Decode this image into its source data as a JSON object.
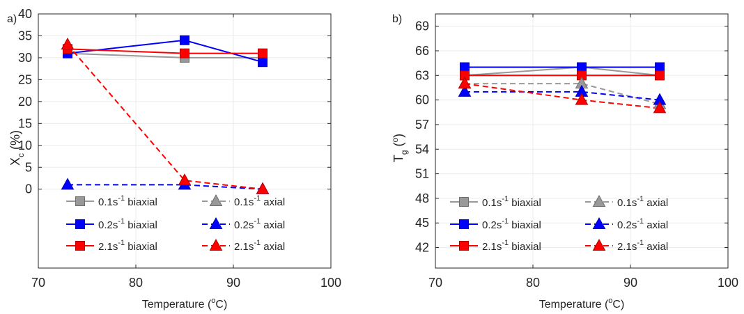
{
  "colors": {
    "gray": "#999999",
    "gray_edge": "#6e6e6e",
    "blue": "#0000ff",
    "blue_edge": "#0000b4",
    "red": "#ff0000",
    "red_edge": "#b40000",
    "grid": "#ebebeb",
    "axis": "#262626"
  },
  "chart_data": [
    {
      "type": "line",
      "panel_label": "a)",
      "title": "",
      "xlabel": "Temperature (°C)",
      "xlabel_parts": {
        "pre": "Temperature (",
        "sup": "o",
        "post": "C)"
      },
      "ylabel": "X_c (%)",
      "ylabel_parts": {
        "main": "X",
        "sub": "c",
        "post": " (%)"
      },
      "xlim": [
        70,
        100
      ],
      "xticks": [
        "70",
        "80",
        "90",
        "100"
      ],
      "ylim": [
        -18,
        40
      ],
      "yticks": [
        "0",
        "5",
        "10",
        "15",
        "20",
        "25",
        "30",
        "35",
        "40"
      ],
      "grid": true,
      "legend_position": "bottom, inside axes (two columns)",
      "series": [
        {
          "name": "0.1s⁻¹ biaxial",
          "label": {
            "rate": "0.1s",
            "exp": "-1",
            "mode": " biaxial"
          },
          "color": "gray",
          "marker": "square",
          "dash": "solid",
          "x": [
            73,
            85,
            93
          ],
          "y": [
            31,
            30,
            30
          ]
        },
        {
          "name": "0.2s⁻¹ biaxial",
          "label": {
            "rate": "0.2s",
            "exp": "-1",
            "mode": " biaxial"
          },
          "color": "blue",
          "marker": "square",
          "dash": "solid",
          "x": [
            73,
            85,
            93
          ],
          "y": [
            31,
            34,
            29
          ]
        },
        {
          "name": "2.1s⁻¹ biaxial",
          "label": {
            "rate": "2.1s",
            "exp": "-1",
            "mode": " biaxial"
          },
          "color": "red",
          "marker": "square",
          "dash": "solid",
          "x": [
            73,
            85,
            93
          ],
          "y": [
            32,
            31,
            31
          ]
        },
        {
          "name": "0.1s⁻¹ axial",
          "label": {
            "rate": "0.1s",
            "exp": "-1",
            "mode": " axial"
          },
          "color": "gray",
          "marker": "triangle",
          "dash": "dashed",
          "x": [
            73,
            85,
            93
          ],
          "y": [
            null,
            null,
            null
          ]
        },
        {
          "name": "0.2s⁻¹ axial",
          "label": {
            "rate": "0.2s",
            "exp": "-1",
            "mode": " axial"
          },
          "color": "blue",
          "marker": "triangle",
          "dash": "dashed",
          "x": [
            73,
            85,
            93
          ],
          "y": [
            1,
            1,
            0
          ]
        },
        {
          "name": "2.1s⁻¹ axial",
          "label": {
            "rate": "2.1s",
            "exp": "-1",
            "mode": " axial"
          },
          "color": "red",
          "marker": "triangle",
          "dash": "dashed",
          "x": [
            73,
            85,
            93
          ],
          "y": [
            33,
            2,
            0
          ]
        }
      ]
    },
    {
      "type": "line",
      "panel_label": "b)",
      "title": "",
      "xlabel": "Temperature (°C)",
      "xlabel_parts": {
        "pre": "Temperature (",
        "sup": "o",
        "post": "C)"
      },
      "ylabel": "T_g (°)",
      "ylabel_parts": {
        "main": "T",
        "sub": "g",
        "pre2": " (",
        "sup": "o",
        "post": ")"
      },
      "xlim": [
        70,
        100
      ],
      "xticks": [
        "70",
        "80",
        "90",
        "100"
      ],
      "ylim": [
        39.5,
        70.5
      ],
      "yticks": [
        "42",
        "45",
        "48",
        "51",
        "54",
        "57",
        "60",
        "63",
        "66",
        "69"
      ],
      "grid": true,
      "legend_position": "bottom, inside axes (two columns)",
      "series": [
        {
          "name": "0.1s⁻¹ biaxial",
          "label": {
            "rate": "0.1s",
            "exp": "-1",
            "mode": " biaxial"
          },
          "color": "gray",
          "marker": "square",
          "dash": "solid",
          "x": [
            73,
            85,
            93
          ],
          "y": [
            63,
            64,
            63
          ]
        },
        {
          "name": "0.2s⁻¹ biaxial",
          "label": {
            "rate": "0.2s",
            "exp": "-1",
            "mode": " biaxial"
          },
          "color": "blue",
          "marker": "square",
          "dash": "solid",
          "x": [
            73,
            85,
            93
          ],
          "y": [
            64,
            64,
            64
          ]
        },
        {
          "name": "2.1s⁻¹ biaxial",
          "label": {
            "rate": "2.1s",
            "exp": "-1",
            "mode": " biaxial"
          },
          "color": "red",
          "marker": "square",
          "dash": "solid",
          "x": [
            73,
            85,
            93
          ],
          "y": [
            63,
            63,
            63
          ]
        },
        {
          "name": "0.1s⁻¹ axial",
          "label": {
            "rate": "0.1s",
            "exp": "-1",
            "mode": " axial"
          },
          "color": "gray",
          "marker": "triangle",
          "dash": "dashed",
          "x": [
            73,
            85,
            93
          ],
          "y": [
            62,
            62,
            59.5
          ]
        },
        {
          "name": "0.2s⁻¹ axial",
          "label": {
            "rate": "0.2s",
            "exp": "-1",
            "mode": " axial"
          },
          "color": "blue",
          "marker": "triangle",
          "dash": "dashed",
          "x": [
            73,
            85,
            93
          ],
          "y": [
            61,
            61,
            60
          ]
        },
        {
          "name": "2.1s⁻¹ axial",
          "label": {
            "rate": "2.1s",
            "exp": "-1",
            "mode": " axial"
          },
          "color": "red",
          "marker": "triangle",
          "dash": "dashed",
          "x": [
            73,
            85,
            93
          ],
          "y": [
            62,
            60,
            59
          ]
        }
      ]
    }
  ]
}
